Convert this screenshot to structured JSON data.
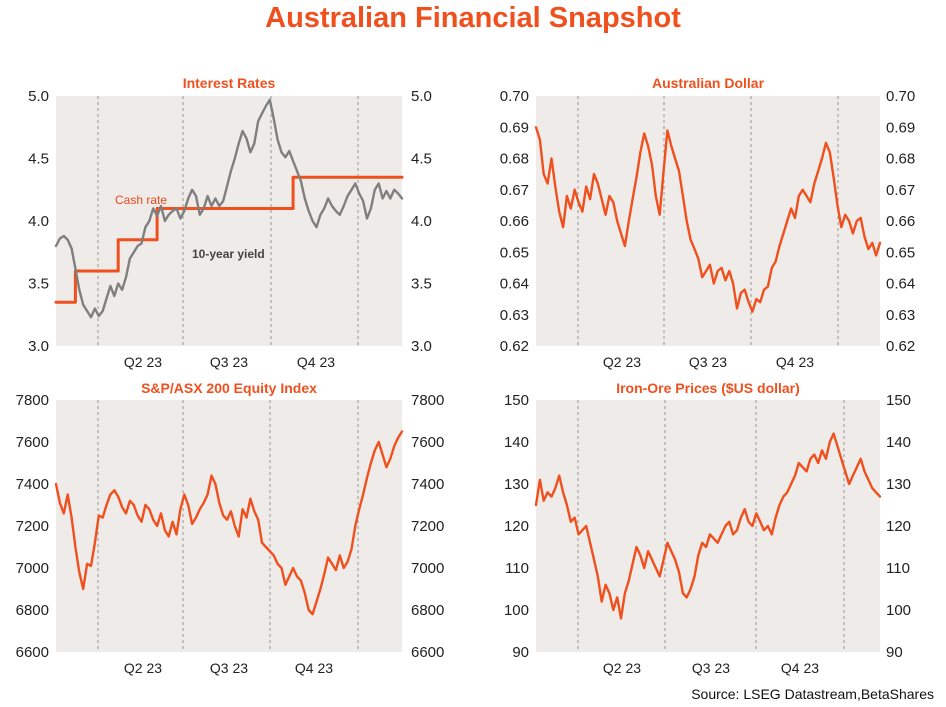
{
  "title": "Australian Financial Snapshot",
  "source": "Source: LSEG Datastream,BetaShares",
  "colors": {
    "accent": "#f0501e",
    "series_gray": "#7f7f7f",
    "panel_bg": "#efebe8",
    "grid": "#9a9a9a"
  },
  "chart_data": [
    {
      "type": "line",
      "title": "Interest Rates",
      "x_ticks": [
        "Q2 23",
        "Q3 23",
        "Q4 23"
      ],
      "y_ticks": [
        "3.0",
        "3.5",
        "4.0",
        "4.5",
        "5.0"
      ],
      "ylim": [
        3.0,
        5.0
      ],
      "dual_axis": true,
      "grid": "vertical dashed at quarter boundaries",
      "annotations": [
        "Cash rate",
        "10-year yield"
      ],
      "series": [
        {
          "name": "Cash rate",
          "color": "#f0501e",
          "style": "step",
          "values": [
            3.35,
            3.35,
            3.35,
            3.35,
            3.35,
            3.6,
            3.6,
            3.6,
            3.6,
            3.6,
            3.6,
            3.6,
            3.6,
            3.6,
            3.6,
            3.6,
            3.85,
            3.85,
            3.85,
            3.85,
            3.85,
            3.85,
            3.85,
            3.85,
            3.85,
            3.85,
            4.1,
            4.1,
            4.1,
            4.1,
            4.1,
            4.1,
            4.1,
            4.1,
            4.1,
            4.1,
            4.1,
            4.1,
            4.1,
            4.1,
            4.1,
            4.1,
            4.1,
            4.1,
            4.1,
            4.1,
            4.1,
            4.1,
            4.1,
            4.1,
            4.1,
            4.1,
            4.1,
            4.1,
            4.1,
            4.1,
            4.1,
            4.1,
            4.1,
            4.1,
            4.1,
            4.35,
            4.35,
            4.35,
            4.35,
            4.35,
            4.35,
            4.35,
            4.35,
            4.35,
            4.35,
            4.35,
            4.35,
            4.35,
            4.35,
            4.35,
            4.35,
            4.35,
            4.35,
            4.35,
            4.35,
            4.35,
            4.35,
            4.35,
            4.35,
            4.35,
            4.35,
            4.35,
            4.35,
            4.35
          ]
        },
        {
          "name": "10-year yield",
          "color": "#7f7f7f",
          "values": [
            3.8,
            3.86,
            3.88,
            3.85,
            3.78,
            3.62,
            3.45,
            3.33,
            3.28,
            3.23,
            3.3,
            3.24,
            3.28,
            3.38,
            3.48,
            3.4,
            3.5,
            3.45,
            3.55,
            3.7,
            3.75,
            3.8,
            3.82,
            3.95,
            4.0,
            4.1,
            4.04,
            4.12,
            4.0,
            4.05,
            4.08,
            4.1,
            4.02,
            4.08,
            4.18,
            4.25,
            4.2,
            4.05,
            4.1,
            4.2,
            4.12,
            4.18,
            4.12,
            4.16,
            4.28,
            4.4,
            4.5,
            4.62,
            4.72,
            4.66,
            4.55,
            4.62,
            4.8,
            4.86,
            4.92,
            4.97,
            4.82,
            4.65,
            4.55,
            4.51,
            4.56,
            4.48,
            4.4,
            4.32,
            4.18,
            4.08,
            4.0,
            3.95,
            4.05,
            4.1,
            4.18,
            4.12,
            4.08,
            4.05,
            4.12,
            4.2,
            4.25,
            4.3,
            4.22,
            4.16,
            4.02,
            4.1,
            4.25,
            4.3,
            4.18,
            4.24,
            4.18,
            4.25,
            4.22,
            4.18
          ]
        }
      ]
    },
    {
      "type": "line",
      "title": "Australian Dollar",
      "x_ticks": [
        "Q2 23",
        "Q3 23",
        "Q4 23"
      ],
      "y_ticks": [
        "0.62",
        "0.63",
        "0.64",
        "0.65",
        "0.66",
        "0.67",
        "0.68",
        "0.69",
        "0.70"
      ],
      "ylim": [
        0.62,
        0.7
      ],
      "dual_axis": true,
      "grid": "vertical dashed at quarter boundaries",
      "series": [
        {
          "color": "#f0501e",
          "values": [
            0.69,
            0.686,
            0.675,
            0.672,
            0.68,
            0.671,
            0.663,
            0.658,
            0.668,
            0.664,
            0.67,
            0.666,
            0.663,
            0.671,
            0.667,
            0.675,
            0.672,
            0.667,
            0.662,
            0.668,
            0.666,
            0.66,
            0.656,
            0.652,
            0.66,
            0.667,
            0.674,
            0.682,
            0.688,
            0.684,
            0.678,
            0.668,
            0.662,
            0.676,
            0.689,
            0.684,
            0.68,
            0.676,
            0.668,
            0.66,
            0.654,
            0.651,
            0.648,
            0.642,
            0.644,
            0.646,
            0.64,
            0.644,
            0.645,
            0.641,
            0.644,
            0.64,
            0.632,
            0.637,
            0.638,
            0.634,
            0.631,
            0.635,
            0.634,
            0.638,
            0.639,
            0.645,
            0.647,
            0.652,
            0.656,
            0.66,
            0.664,
            0.661,
            0.668,
            0.67,
            0.668,
            0.666,
            0.672,
            0.676,
            0.68,
            0.685,
            0.682,
            0.674,
            0.665,
            0.658,
            0.662,
            0.66,
            0.656,
            0.66,
            0.661,
            0.655,
            0.651,
            0.653,
            0.649,
            0.653
          ]
        }
      ]
    },
    {
      "type": "line",
      "title": "S&P/ASX 200 Equity Index",
      "x_ticks": [
        "Q2 23",
        "Q3 23",
        "Q4 23"
      ],
      "y_ticks": [
        "6600",
        "6800",
        "7000",
        "7200",
        "7400",
        "7600",
        "7800"
      ],
      "ylim": [
        6600,
        7800
      ],
      "dual_axis": true,
      "grid": "vertical dashed at quarter boundaries",
      "series": [
        {
          "color": "#f0501e",
          "values": [
            7400,
            7310,
            7260,
            7350,
            7240,
            7100,
            6980,
            6900,
            7020,
            7010,
            7120,
            7250,
            7240,
            7300,
            7350,
            7370,
            7340,
            7290,
            7260,
            7320,
            7300,
            7250,
            7220,
            7300,
            7280,
            7230,
            7200,
            7260,
            7180,
            7150,
            7220,
            7160,
            7280,
            7350,
            7300,
            7210,
            7240,
            7280,
            7310,
            7350,
            7440,
            7400,
            7310,
            7250,
            7230,
            7270,
            7200,
            7150,
            7280,
            7240,
            7330,
            7270,
            7230,
            7120,
            7100,
            7080,
            7060,
            7020,
            7000,
            6920,
            6960,
            7000,
            6960,
            6940,
            6880,
            6800,
            6780,
            6840,
            6900,
            6970,
            7050,
            7020,
            6990,
            7060,
            7000,
            7030,
            7090,
            7200,
            7280,
            7350,
            7430,
            7500,
            7560,
            7600,
            7540,
            7480,
            7520,
            7580,
            7620,
            7650
          ]
        }
      ]
    },
    {
      "type": "line",
      "title": "Iron-Ore Prices ($US dollar)",
      "x_ticks": [
        "Q2 23",
        "Q3 23",
        "Q4 23"
      ],
      "y_ticks": [
        "90",
        "100",
        "110",
        "120",
        "130",
        "140",
        "150"
      ],
      "ylim": [
        90,
        150
      ],
      "dual_axis": true,
      "grid": "vertical dashed at quarter boundaries",
      "series": [
        {
          "color": "#f0501e",
          "values": [
            125,
            131,
            126,
            128,
            127,
            129,
            132,
            128,
            125,
            121,
            122,
            118,
            119,
            120,
            116,
            112,
            108,
            102,
            106,
            104,
            100,
            103,
            98,
            104,
            107,
            111,
            115,
            113,
            110,
            114,
            112,
            110,
            108,
            112,
            116,
            114,
            112,
            109,
            104,
            103,
            105,
            108,
            113,
            116,
            115,
            118,
            117,
            116,
            118,
            120,
            121,
            118,
            119,
            122,
            124,
            121,
            120,
            123,
            121,
            119,
            120,
            118,
            122,
            125,
            127,
            128,
            130,
            132,
            135,
            134,
            133,
            136,
            137,
            135,
            138,
            136,
            140,
            142,
            139,
            136,
            133,
            130,
            132,
            134,
            136,
            133,
            131,
            129,
            128,
            127
          ]
        }
      ]
    }
  ]
}
